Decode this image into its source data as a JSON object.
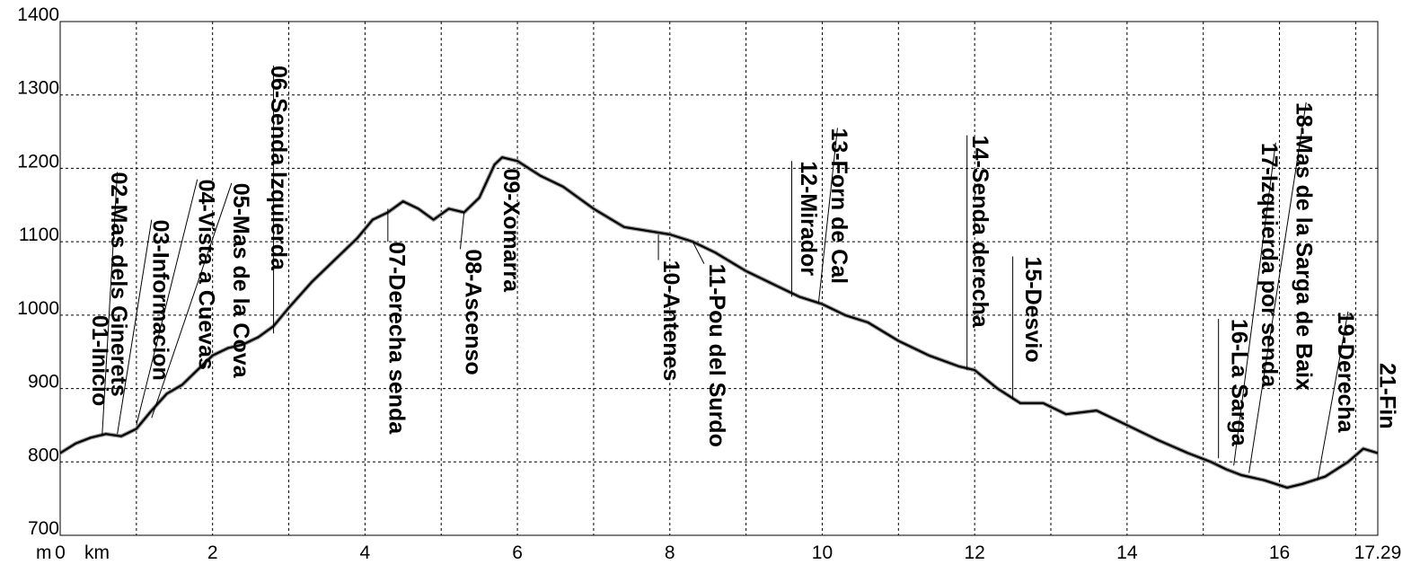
{
  "chart_data": {
    "type": "line",
    "xlabel": "km",
    "ylabel": "m",
    "xlim": [
      0,
      17.29
    ],
    "ylim": [
      700,
      1400
    ],
    "x_ticks": [
      "0",
      "2",
      "4",
      "6",
      "8",
      "10",
      "12",
      "14",
      "16"
    ],
    "x_end_label": "17.29",
    "y_ticks": [
      "1400",
      "1300",
      "1200",
      "1100",
      "1000",
      "900",
      "800",
      "700"
    ],
    "grid": true,
    "series": [
      {
        "x": [
          0,
          0.2,
          0.4,
          0.6,
          0.8,
          1.0,
          1.2,
          1.4,
          1.6,
          1.8,
          2.0,
          2.2,
          2.4,
          2.6,
          2.8,
          3.0,
          3.3,
          3.6,
          3.9,
          4.1,
          4.3,
          4.5,
          4.7,
          4.9,
          5.1,
          5.3,
          5.5,
          5.7,
          5.8,
          6.0,
          6.3,
          6.6,
          7.0,
          7.4,
          7.7,
          8.0,
          8.3,
          8.6,
          9.0,
          9.4,
          9.7,
          10.0,
          10.3,
          10.6,
          11.0,
          11.4,
          11.8,
          12.0,
          12.3,
          12.6,
          12.9,
          13.2,
          13.6,
          14.0,
          14.4,
          14.8,
          15.1,
          15.3,
          15.5,
          15.8,
          16.1,
          16.3,
          16.6,
          16.9,
          17.1,
          17.29
        ],
        "y": [
          812,
          825,
          833,
          838,
          835,
          845,
          870,
          893,
          905,
          925,
          945,
          955,
          960,
          970,
          985,
          1010,
          1045,
          1075,
          1105,
          1130,
          1140,
          1155,
          1145,
          1130,
          1145,
          1140,
          1160,
          1205,
          1215,
          1210,
          1190,
          1175,
          1145,
          1120,
          1115,
          1110,
          1100,
          1085,
          1060,
          1040,
          1025,
          1015,
          1000,
          990,
          965,
          945,
          930,
          925,
          900,
          880,
          880,
          865,
          870,
          850,
          830,
          812,
          800,
          790,
          782,
          775,
          765,
          770,
          780,
          800,
          818,
          812
        ]
      }
    ],
    "waypoints": [
      {
        "name": "01-Inicio",
        "x": 0.05,
        "y": 812,
        "label_km": 0.5,
        "label_top_m": 1000,
        "leader": false
      },
      {
        "name": "02-Mas dels Ginerets",
        "x": 0.55,
        "y": 835,
        "label_km": 0.75,
        "label_top_m": 1195,
        "leader": true,
        "leader_to_km": 0.75
      },
      {
        "name": "03-Informacion",
        "x": 0.75,
        "y": 838,
        "label_km": 1.3,
        "label_top_m": 1130,
        "leader": true,
        "leader_to_km": 1.2
      },
      {
        "name": "04-Vista a Cuevas",
        "x": 1.0,
        "y": 850,
        "label_km": 1.9,
        "label_top_m": 1185,
        "leader": true,
        "leader_to_km": 1.8
      },
      {
        "name": "05-Mas de la Cova",
        "x": 1.2,
        "y": 860,
        "label_km": 2.35,
        "label_top_m": 1180,
        "leader": true,
        "leader_to_km": 2.25
      },
      {
        "name": "06-Senda Izquierda",
        "x": 2.8,
        "y": 975,
        "label_km": 2.85,
        "label_top_m": 1340,
        "leader": true,
        "leader_to_km": 2.8
      },
      {
        "name": "07-Derecha senda",
        "x": 4.3,
        "y": 1145,
        "label_km": 4.4,
        "label_top_m": 1100,
        "leader": true,
        "leader_to_km": 4.3
      },
      {
        "name": "08-Ascenso",
        "x": 5.3,
        "y": 1140,
        "label_km": 5.4,
        "label_top_m": 1090,
        "leader": true,
        "leader_to_km": 5.25
      },
      {
        "name": "09-Xomarra",
        "x": 5.8,
        "y": 1215,
        "label_km": 5.9,
        "label_top_m": 1200,
        "leader": false
      },
      {
        "name": "10-Antenes",
        "x": 7.85,
        "y": 1110,
        "label_km": 8.0,
        "label_top_m": 1075,
        "leader": true,
        "leader_to_km": 7.85
      },
      {
        "name": "11-Pou del Surdo",
        "x": 8.3,
        "y": 1100,
        "label_km": 8.6,
        "label_top_m": 1070,
        "leader": true,
        "leader_to_km": 8.45
      },
      {
        "name": "12-Mirador",
        "x": 9.6,
        "y": 1025,
        "label_km": 9.8,
        "label_top_m": 1210,
        "leader": true,
        "leader_to_km": 9.6
      },
      {
        "name": "13-Forn de Cal",
        "x": 9.95,
        "y": 1015,
        "label_km": 10.2,
        "label_top_m": 1255,
        "leader": true,
        "leader_to_km": 10.2
      },
      {
        "name": "14-Senda derecha",
        "x": 11.9,
        "y": 925,
        "label_km": 12.05,
        "label_top_m": 1245,
        "leader": true,
        "leader_to_km": 11.9
      },
      {
        "name": "15-Desvio",
        "x": 12.5,
        "y": 885,
        "label_km": 12.75,
        "label_top_m": 1080,
        "leader": true,
        "leader_to_km": 12.5
      },
      {
        "name": "16-La Sarga",
        "x": 15.2,
        "y": 805,
        "label_km": 15.45,
        "label_top_m": 995,
        "leader": true,
        "leader_to_km": 15.2
      },
      {
        "name": "17-Izquierda por senda",
        "x": 15.4,
        "y": 795,
        "label_km": 15.85,
        "label_top_m": 1235,
        "leader": true,
        "leader_to_km": 15.95
      },
      {
        "name": "18-Mas de la Sarga de Baix",
        "x": 15.6,
        "y": 785,
        "label_km": 16.3,
        "label_top_m": 1290,
        "leader": true,
        "leader_to_km": 16.35
      },
      {
        "name": "19-Derecha",
        "x": 16.5,
        "y": 775,
        "label_km": 16.85,
        "label_top_m": 1005,
        "leader": true,
        "leader_to_km": 16.9
      },
      {
        "name": "21-Fin",
        "x": 17.29,
        "y": 812,
        "label_km": 17.4,
        "label_top_m": 935,
        "leader": false
      }
    ]
  }
}
